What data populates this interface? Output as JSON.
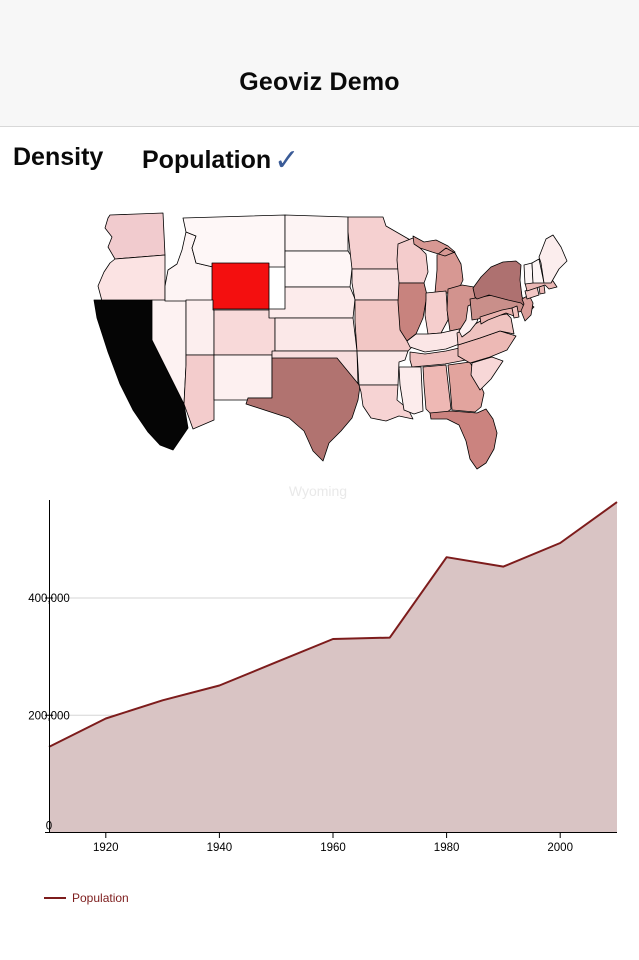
{
  "header": {
    "title": "Geoviz Demo"
  },
  "tabs": {
    "density": {
      "label": "Density",
      "selected": false
    },
    "population": {
      "label": "Population",
      "selected": true
    },
    "check_glyph": "✓",
    "check_color": "#3a5b97"
  },
  "map": {
    "selected_label": "Wyoming",
    "border_color": "#000000",
    "states": [
      {
        "id": "WA",
        "color": "#f1cbce"
      },
      {
        "id": "OR",
        "color": "#fbe3e3"
      },
      {
        "id": "CA",
        "color": "#050505"
      },
      {
        "id": "NV",
        "color": "#fdf2f2"
      },
      {
        "id": "ID",
        "color": "#fdf4f4"
      },
      {
        "id": "MT",
        "color": "#fef7f7"
      },
      {
        "id": "WY",
        "color": "#f40f0f"
      },
      {
        "id": "UT",
        "color": "#fceeee"
      },
      {
        "id": "CO",
        "color": "#f8d9d9"
      },
      {
        "id": "AZ",
        "color": "#f3cccc"
      },
      {
        "id": "NM",
        "color": "#fdf0f0"
      },
      {
        "id": "ND",
        "color": "#fdf4f4"
      },
      {
        "id": "SD",
        "color": "#fef6f6"
      },
      {
        "id": "NE",
        "color": "#fcebeb"
      },
      {
        "id": "KS",
        "color": "#fbe8e8"
      },
      {
        "id": "OK",
        "color": "#f8dddd"
      },
      {
        "id": "TX",
        "color": "#b17370"
      },
      {
        "id": "MN",
        "color": "#f5d0d0"
      },
      {
        "id": "IA",
        "color": "#f9e0e0"
      },
      {
        "id": "MO",
        "color": "#f2c7c5"
      },
      {
        "id": "AR",
        "color": "#fbe8e8"
      },
      {
        "id": "LA",
        "color": "#f6d3d3"
      },
      {
        "id": "WI",
        "color": "#f4cccc"
      },
      {
        "id": "MI",
        "color": "#d79893"
      },
      {
        "id": "IL",
        "color": "#c8837e"
      },
      {
        "id": "IN",
        "color": "#f5cecd"
      },
      {
        "id": "OH",
        "color": "#d2938e"
      },
      {
        "id": "KY",
        "color": "#fbe6e6"
      },
      {
        "id": "TN",
        "color": "#efc1bf"
      },
      {
        "id": "MS",
        "color": "#fcecec"
      },
      {
        "id": "AL",
        "color": "#eeb8b4"
      },
      {
        "id": "GA",
        "color": "#e2a49e"
      },
      {
        "id": "FL",
        "color": "#cb837f"
      },
      {
        "id": "SC",
        "color": "#f7d7d7"
      },
      {
        "id": "NC",
        "color": "#edb9b5"
      },
      {
        "id": "VA",
        "color": "#efc3c0"
      },
      {
        "id": "WV",
        "color": "#fdf1f1"
      },
      {
        "id": "PA",
        "color": "#c98f8a"
      },
      {
        "id": "NY",
        "color": "#ae7170"
      },
      {
        "id": "NJ",
        "color": "#da9d99"
      },
      {
        "id": "MD",
        "color": "#e9b2ae"
      },
      {
        "id": "DE",
        "color": "#f0c1bd"
      },
      {
        "id": "CT",
        "color": "#f2c7c5"
      },
      {
        "id": "RI",
        "color": "#eab5b2"
      },
      {
        "id": "MA",
        "color": "#eab7b4"
      },
      {
        "id": "VT",
        "color": "#fdf6f6"
      },
      {
        "id": "NH",
        "color": "#fdf5f5"
      },
      {
        "id": "ME",
        "color": "#fbeded"
      }
    ]
  },
  "chart_data": {
    "type": "area",
    "title": "Wyoming",
    "title_color": "#e9e9e9",
    "x": [
      1910,
      1920,
      1930,
      1940,
      1950,
      1960,
      1970,
      1980,
      1990,
      2000,
      2010
    ],
    "series": [
      {
        "name": "Population",
        "values": [
          145965,
          194402,
          225565,
          250742,
          290529,
          330066,
          332416,
          469557,
          453588,
          493782,
          563626
        ]
      }
    ],
    "xlim": [
      1910,
      2010
    ],
    "ylim": [
      0,
      566000
    ],
    "x_ticks": [
      1920,
      1940,
      1960,
      1980,
      2000
    ],
    "y_ticks": [
      {
        "value": 0,
        "label": "0"
      },
      {
        "value": 200000,
        "label": "200,000"
      },
      {
        "value": 400000,
        "label": "400,000"
      }
    ],
    "grid": "horizontal",
    "line_color": "#7d1c1c",
    "fill_color": "#d9c4c4",
    "axis_color": "#000000",
    "grid_color": "#d6d6d6",
    "legend": {
      "label": "Population",
      "position": "bottom-left",
      "color": "#7d1c1c"
    }
  }
}
